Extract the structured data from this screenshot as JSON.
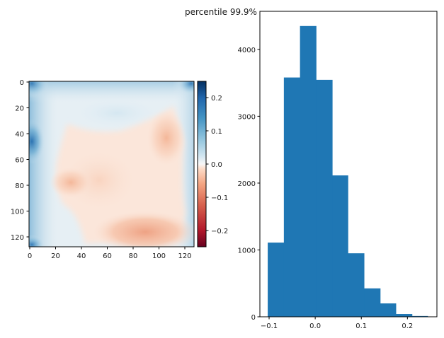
{
  "figure": {
    "suptitle": "percentile 99.9%"
  },
  "chart_data": [
    {
      "type": "heatmap",
      "title": "",
      "xlabel": "",
      "ylabel": "",
      "colormap": "RdBu",
      "xlim": [
        0,
        127
      ],
      "ylim": [
        127,
        0
      ],
      "x_ticks": [
        "0",
        "20",
        "40",
        "60",
        "80",
        "100",
        "120"
      ],
      "y_ticks": [
        "0",
        "20",
        "40",
        "60",
        "80",
        "100",
        "120"
      ],
      "description": "128x128 smooth field; strong positive (blue) along left edge and corners, near-zero light blue band at top center, negative (red) blobs at around (x=100,y=50), (x=30,y=78) and strongest along bottom (x=90,y=118)",
      "colorbar": {
        "range": [
          -0.25,
          0.25
        ],
        "ticks": [
          "0.2",
          "0.1",
          "0.0",
          "−0.1",
          "−0.2"
        ],
        "tick_values": [
          0.2,
          0.1,
          0.0,
          -0.1,
          -0.2
        ]
      }
    },
    {
      "type": "bar",
      "subtype": "histogram",
      "title": "",
      "xlabel": "",
      "ylabel": "",
      "bin_edges": [
        -0.103,
        -0.068,
        -0.033,
        0.002,
        0.037,
        0.071,
        0.106,
        0.141,
        0.175,
        0.21,
        0.244
      ],
      "values": [
        1110,
        3580,
        4350,
        3545,
        2115,
        950,
        425,
        200,
        42,
        12
      ],
      "color": "#1f77b4",
      "xlim": [
        -0.12,
        0.264
      ],
      "ylim": [
        0,
        4570
      ],
      "x_ticks": [
        "−0.1",
        "0.0",
        "0.1",
        "0.2"
      ],
      "x_tick_values": [
        -0.1,
        0.0,
        0.1,
        0.2
      ],
      "y_ticks": [
        "0",
        "1000",
        "2000",
        "3000",
        "4000"
      ],
      "y_tick_values": [
        0,
        1000,
        2000,
        3000,
        4000
      ],
      "grid": false
    }
  ]
}
